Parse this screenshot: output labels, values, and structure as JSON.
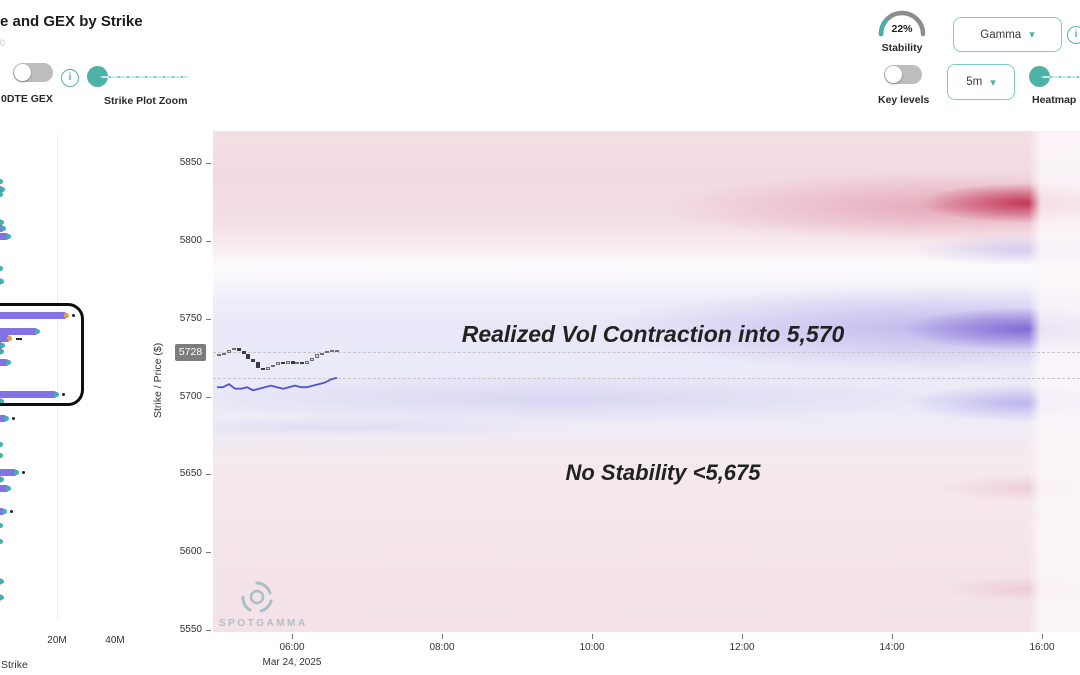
{
  "colors": {
    "accent_teal": "#4db3a8",
    "bar_purple": "#8173e6",
    "tip_teal": "#3fb3a7",
    "tip_orange": "#e5a33c",
    "annotation_blue": "#4355e6",
    "annotation_red": "#e04d26",
    "heat_red": "#bd1f44",
    "heat_purple": "#6f52cf",
    "price_label_bg": "#7c7c7c"
  },
  "header": {
    "title_fragment": "e and GEX by Strike",
    "subtitle_fragment": "0",
    "odte_toggle_label": "0DTE GEX",
    "strike_zoom_label": "Strike Plot Zoom",
    "stability_value": "22%",
    "stability_label": "Stability",
    "gamma_dropdown_value": "Gamma",
    "key_levels_label": "Key levels",
    "timeframe_dropdown_value": "5m",
    "heatmap_slider_label": "Heatmap"
  },
  "left_chart": {
    "x_tick_labels": [
      "20M",
      "40M"
    ],
    "axis_title_fragment": "Strike"
  },
  "main_chart": {
    "y_axis_title": "Strike / Price ($)",
    "current_price_label": "5728",
    "x_date_label": "Mar 24, 2025",
    "watermark": "SPOTGAMMA"
  },
  "chart_data": [
    {
      "type": "bar",
      "title": "GEX by Strike (left panel)",
      "orientation": "horizontal",
      "value_axis_ticks": [
        "20M",
        "40M"
      ],
      "value_unit": "M",
      "highlight_box_strike_range": [
        5698,
        5756
      ],
      "bars": [
        {
          "strike": 5838,
          "value_m": 0.5,
          "tip": "teal"
        },
        {
          "strike": 5833,
          "value_m": 0.9,
          "tip": "teal"
        },
        {
          "strike": 5830,
          "value_m": 0.5,
          "tip": "teal"
        },
        {
          "strike": 5812,
          "value_m": 0.7,
          "tip": "teal"
        },
        {
          "strike": 5808,
          "value_m": 1.4,
          "tip": "teal"
        },
        {
          "strike": 5803,
          "value_m": 3.0,
          "tip": "teal"
        },
        {
          "strike": 5782,
          "value_m": 0.5,
          "tip": "teal"
        },
        {
          "strike": 5774,
          "value_m": 0.8,
          "tip": "teal"
        },
        {
          "strike": 5752,
          "value_m": 23.5,
          "tip": "orange",
          "marker": "dot"
        },
        {
          "strike": 5742,
          "value_m": 13.5,
          "tip": "teal"
        },
        {
          "strike": 5737,
          "value_m": 3.5,
          "tip": "orange",
          "marker": "dash"
        },
        {
          "strike": 5733,
          "value_m": 0.9,
          "tip": "teal"
        },
        {
          "strike": 5729,
          "value_m": 0.6,
          "tip": "teal"
        },
        {
          "strike": 5722,
          "value_m": 3.2,
          "tip": "teal"
        },
        {
          "strike": 5701,
          "value_m": 20.0,
          "tip": "teal",
          "marker": "dot"
        },
        {
          "strike": 5697,
          "value_m": 0.7,
          "tip": "teal"
        },
        {
          "strike": 5686,
          "value_m": 2.6,
          "tip": "teal",
          "marker": "dot"
        },
        {
          "strike": 5669,
          "value_m": 0.5,
          "tip": "teal"
        },
        {
          "strike": 5662,
          "value_m": 0.5,
          "tip": "teal"
        },
        {
          "strike": 5651,
          "value_m": 6.0,
          "tip": "teal",
          "marker": "dot"
        },
        {
          "strike": 5647,
          "value_m": 0.6,
          "tip": "teal"
        },
        {
          "strike": 5641,
          "value_m": 3.0,
          "tip": "teal"
        },
        {
          "strike": 5626,
          "value_m": 1.8,
          "tip": "teal",
          "marker": "dot"
        },
        {
          "strike": 5617,
          "value_m": 0.4,
          "tip": "teal"
        },
        {
          "strike": 5607,
          "value_m": 0.4,
          "tip": "teal"
        },
        {
          "strike": 5581,
          "value_m": 0.7,
          "tip": "teal"
        },
        {
          "strike": 5571,
          "value_m": 0.7,
          "tip": "teal"
        }
      ]
    },
    {
      "type": "heatmap",
      "subtype": "gamma-heatmap with price candles and realized-vol line",
      "x_ticks": [
        "06:00",
        "08:00",
        "10:00",
        "12:00",
        "14:00",
        "16:00"
      ],
      "x_date": "Mar 24, 2025",
      "y_ticks": [
        5850,
        5800,
        5750,
        5700,
        5650,
        5600,
        5550
      ],
      "y_label": "Strike / Price ($)",
      "y_range": [
        5550,
        5850
      ],
      "current_price": 5728,
      "key_levels_dashed": [
        5728,
        5712
      ],
      "candles": [
        [
          5726,
          5727
        ],
        [
          5727,
          5728
        ],
        [
          5728,
          5730
        ],
        [
          5730,
          5731
        ],
        [
          5731,
          5729
        ],
        [
          5729,
          5727
        ],
        [
          5727,
          5724
        ],
        [
          5724,
          5722
        ],
        [
          5722,
          5718
        ],
        [
          5718,
          5717
        ],
        [
          5717,
          5719
        ],
        [
          5719,
          5720
        ],
        [
          5720,
          5722
        ],
        [
          5722,
          5721
        ],
        [
          5721,
          5723
        ],
        [
          5723,
          5721
        ],
        [
          5721,
          5722
        ],
        [
          5722,
          5721
        ],
        [
          5721,
          5723
        ],
        [
          5723,
          5725
        ],
        [
          5725,
          5727
        ],
        [
          5727,
          5728
        ],
        [
          5728,
          5729
        ],
        [
          5729,
          5730
        ],
        [
          5730,
          5730
        ]
      ],
      "price_line": [
        5706,
        5706,
        5708,
        5705,
        5705,
        5706,
        5704,
        5705,
        5706,
        5707,
        5706,
        5705,
        5706,
        5707,
        5706,
        5706,
        5707,
        5708,
        5709,
        5711,
        5712
      ],
      "heat_zones": [
        {
          "strike_center": 5825,
          "color": "red",
          "intensity": "strong into 16:00 close"
        },
        {
          "strike_center": 5795,
          "color": "blue",
          "intensity": "faint, right side only"
        },
        {
          "strike_center": 5745,
          "color": "purple",
          "intensity": "strong into 16:00 close"
        },
        {
          "strike_center": 5703,
          "color": "blue",
          "intensity": "moderate, full width"
        },
        {
          "strike_range": [
            5550,
            5675
          ],
          "color": "pink",
          "intensity": "light"
        }
      ],
      "annotations": [
        {
          "text": "Realized Vol Contraction into 5,570",
          "color": "#4355e6"
        },
        {
          "text": "No Stability <5,675",
          "color": "#e04d26"
        }
      ]
    }
  ]
}
